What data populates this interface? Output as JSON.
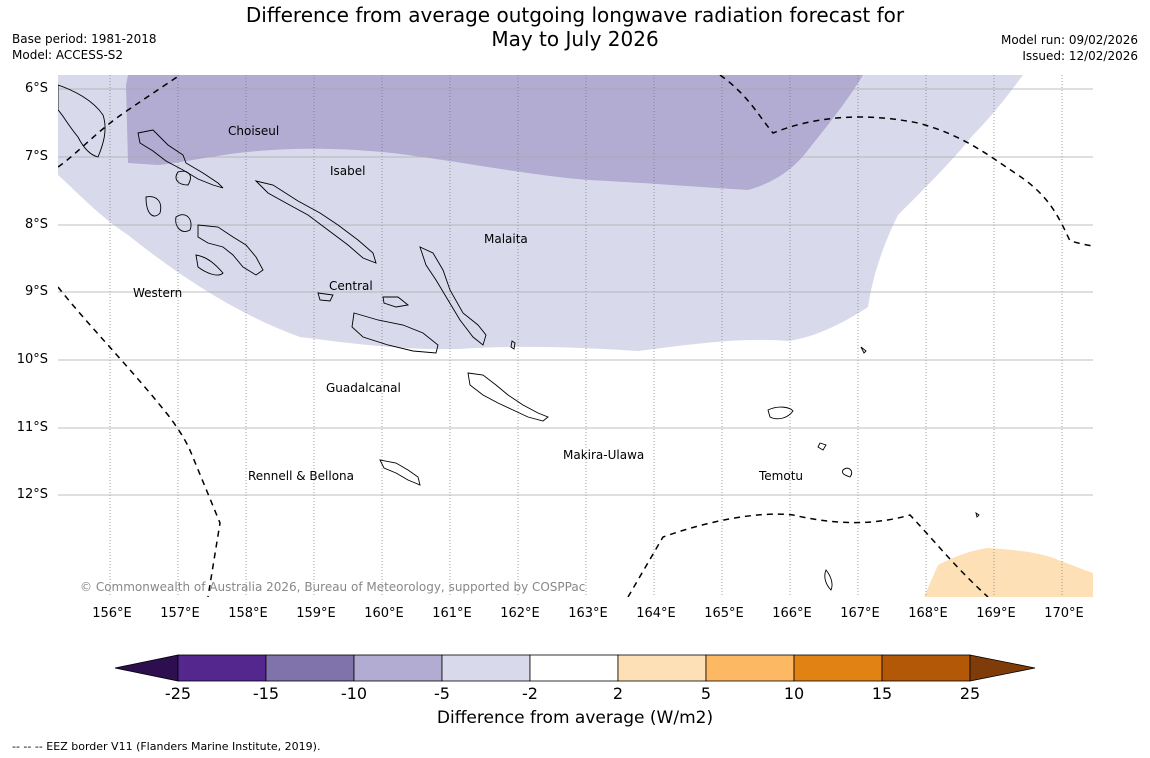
{
  "title_line1": "Difference from average outgoing longwave radiation forecast for",
  "title_line2": "May to July 2026",
  "base_period": "Base period: 1981-2018",
  "model": "Model: ACCESS-S2",
  "model_run": "Model run: 09/02/2026",
  "issued": "Issued: 12/02/2026",
  "latitudes": [
    "6°S",
    "7°S",
    "8°S",
    "9°S",
    "10°S",
    "11°S",
    "12°S"
  ],
  "longitudes": [
    "156°E",
    "157°E",
    "158°E",
    "159°E",
    "160°E",
    "161°E",
    "162°E",
    "163°E",
    "164°E",
    "165°E",
    "166°E",
    "167°E",
    "168°E",
    "169°E",
    "170°E"
  ],
  "places": {
    "choiseul": "Choiseul",
    "isabel": "Isabel",
    "malaita": "Malaita",
    "western": "Western",
    "central": "Central",
    "guadalcanal": "Guadalcanal",
    "makira": "Makira-Ulawa",
    "rennell": "Rennell & Bellona",
    "temotu": "Temotu"
  },
  "copyright": "© Commonwealth of Australia 2026, Bureau of Meteorology, supported by COSPPac",
  "legend": {
    "ticks": [
      "-25",
      "-15",
      "-10",
      "-5",
      "-2",
      "2",
      "5",
      "10",
      "15",
      "25"
    ],
    "colors": [
      "#2d0e4e",
      "#54278f",
      "#8073ac",
      "#b2abd2",
      "#d8daeb",
      "#ffffff",
      "#fee0b6",
      "#fdb863",
      "#e08214",
      "#b35806",
      "#7f3b08"
    ],
    "title": "Difference from average (W/m2)"
  },
  "footnote": "--  --  -- EEZ border V11 (Flanders Marine Institute, 2019).",
  "colors": {
    "light_purple": "#d8daeb",
    "mid_purple": "#b2abd2",
    "light_orange": "#fee0b6"
  }
}
